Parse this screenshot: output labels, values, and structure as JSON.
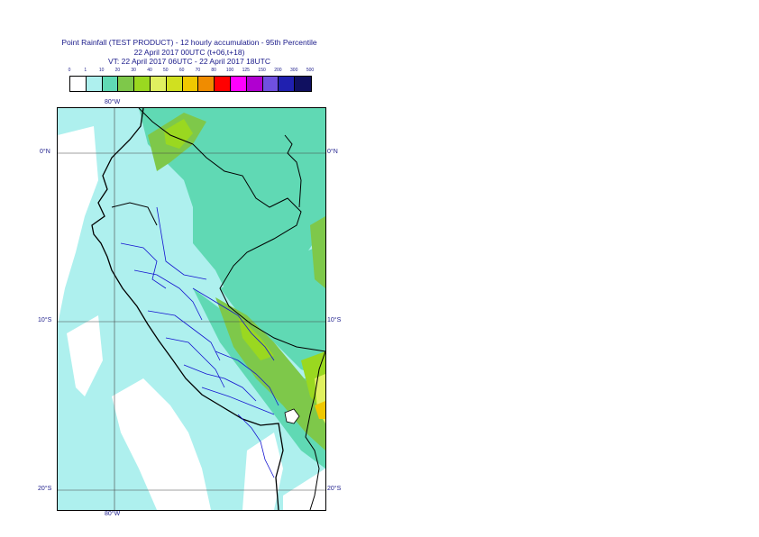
{
  "title": {
    "line1": "Point Rainfall (TEST PRODUCT) - 12 hourly accumulation - 95th Percentile",
    "line2": "22 April 2017 00UTC (t+06,t+18)",
    "line3": "VT: 22 April 2017 06UTC - 22 April 2017 18UTC"
  },
  "legend": {
    "thresholds": [
      "0",
      "1",
      "10",
      "20",
      "30",
      "40",
      "50",
      "60",
      "70",
      "80",
      "100",
      "125",
      "150",
      "200",
      "300",
      "500"
    ],
    "colors": [
      "#ffffff",
      "#aef0ee",
      "#60d9b4",
      "#7ec84a",
      "#9ad820",
      "#e0f060",
      "#d0e020",
      "#f0c800",
      "#f08c00",
      "#ff0000",
      "#ff00ff",
      "#b000d0",
      "#7050e0",
      "#2020b0",
      "#101060"
    ]
  },
  "axes": {
    "lon_top": "80°W",
    "lon_bottom": "80°W",
    "lat_left": [
      "0°N",
      "10°S",
      "20°S"
    ],
    "lat_right": [
      "0°N",
      "10°S",
      "20°S"
    ]
  }
}
